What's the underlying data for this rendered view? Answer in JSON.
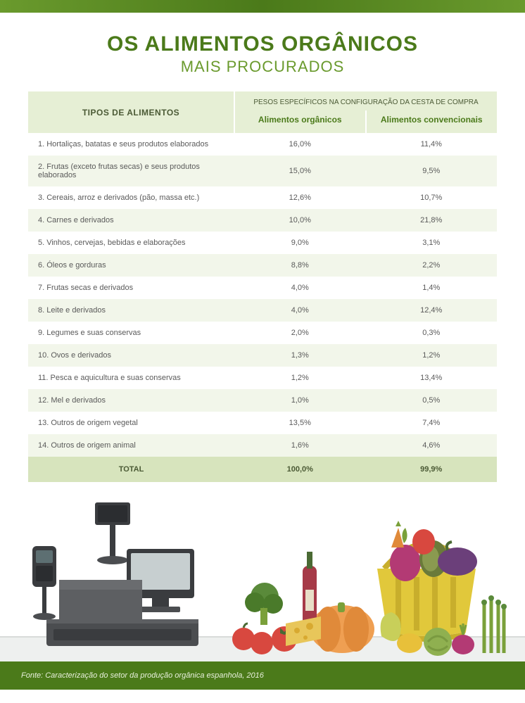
{
  "colors": {
    "bar_gradient_edge": "#6a9a2d",
    "bar_gradient_mid": "#4b7a1a",
    "title": "#4b7a1a",
    "subtitle": "#6a9a2d",
    "header_bg": "#e6efd5",
    "row_even_bg": "#f2f6ea",
    "total_bg": "#d7e4bd",
    "text": "#5a5a5a",
    "footer_bg": "#4b7a1a",
    "footer_text": "#e8f0dc"
  },
  "title": "OS ALIMENTOS ORGÂNICOS",
  "subtitle": "MAIS PROCURADOS",
  "table": {
    "foods_header": "TIPOS DE ALIMENTOS",
    "weights_header": "PESOS ESPECÍFICOS NA CONFIGURAÇÃO DA CESTA DE COMPRA",
    "col_organic": "Alimentos orgânicos",
    "col_conventional": "Alimentos convencionais",
    "col_widths": [
      "44%",
      "28%",
      "28%"
    ],
    "rows": [
      {
        "name": "1. Hortaliças, batatas e seus produtos elaborados",
        "organic": "16,0%",
        "conventional": "11,4%"
      },
      {
        "name": "2. Frutas (exceto frutas secas) e seus produtos elaborados",
        "organic": "15,0%",
        "conventional": "9,5%"
      },
      {
        "name": "3. Cereais, arroz e derivados (pão, massa etc.)",
        "organic": "12,6%",
        "conventional": "10,7%"
      },
      {
        "name": "4. Carnes e derivados",
        "organic": "10,0%",
        "conventional": "21,8%"
      },
      {
        "name": "5. Vinhos, cervejas, bebidas e elaborações",
        "organic": "9,0%",
        "conventional": "3,1%"
      },
      {
        "name": "6. Óleos e gorduras",
        "organic": "8,8%",
        "conventional": "2,2%"
      },
      {
        "name": "7. Frutas secas e derivados",
        "organic": "4,0%",
        "conventional": "1,4%"
      },
      {
        "name": "8. Leite e derivados",
        "organic": "4,0%",
        "conventional": "12,4%"
      },
      {
        "name": "9. Legumes e suas conservas",
        "organic": "2,0%",
        "conventional": "0,3%"
      },
      {
        "name": "10. Ovos e derivados",
        "organic": "1,3%",
        "conventional": "1,2%"
      },
      {
        "name": "11. Pesca e aquicultura e suas conservas",
        "organic": "1,2%",
        "conventional": "13,4%"
      },
      {
        "name": "12. Mel e derivados",
        "organic": "1,0%",
        "conventional": "0,5%"
      },
      {
        "name": "13. Outros de origem vegetal",
        "organic": "13,5%",
        "conventional": "7,4%"
      },
      {
        "name": "14. Outros de origem animal",
        "organic": "1,6%",
        "conventional": "4,6%"
      }
    ],
    "total": {
      "label": "TOTAL",
      "organic": "100,0%",
      "conventional": "99,9%"
    }
  },
  "illustration": {
    "register": {
      "body": "#4b4d50",
      "body_hi": "#5d5f62",
      "screen_frame": "#3a3c3f",
      "screen": "#c7cfd0",
      "pole": "#3a3c3f",
      "card_reader": "#3a3c3f"
    },
    "produce": {
      "basket": "#e1c83b",
      "basket_dark": "#c8ae2c",
      "pumpkin": "#ef9f52",
      "pumpkin_dark": "#e08a3a",
      "tomato": "#d8483f",
      "beet": "#b33a74",
      "avocado": "#6a7a3a",
      "eggplant": "#6b3f7a",
      "carrot_top": "#7aa03a",
      "carrot": "#e08a3a",
      "wine": "#a63a48",
      "wine_neck": "#4a6a34",
      "cheese": "#e8c65a",
      "cheese_holes": "#d8a930",
      "broccoli": "#5a8a3a",
      "pear": "#c8cf5a",
      "apple": "#d8483f",
      "asparagus": "#7aa03a",
      "cabbage": "#8fb050",
      "pepper": "#e8c03a"
    }
  },
  "footer": "Fonte: Caracterização do setor da produção orgânica espanhola, 2016"
}
